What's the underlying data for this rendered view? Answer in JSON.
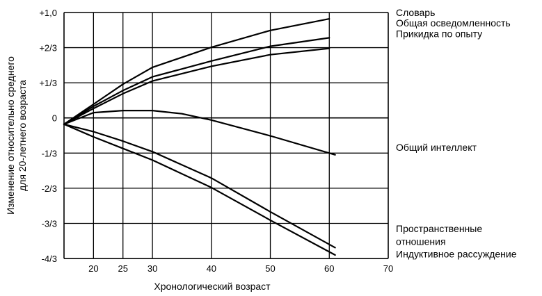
{
  "chart_data": {
    "type": "line",
    "title": "",
    "xlabel": "Хронологический возраст",
    "ylabel_lines": [
      "Изменение относительно среднего",
      "для 20-летнего возраста"
    ],
    "x_ticks": [
      "20",
      "25",
      "30",
      "40",
      "50",
      "60",
      "70"
    ],
    "y_ticks": [
      "+1,0",
      "+2/3",
      "+1/3",
      "0",
      "-1/3",
      "-2/3",
      "-3/3",
      "-4/3"
    ],
    "xlim": [
      15,
      70
    ],
    "ylim": [
      -1.333,
      1.0
    ],
    "series": [
      {
        "name": "Словарь",
        "x": [
          15,
          20,
          25,
          30,
          40,
          50,
          60
        ],
        "y": [
          -0.06,
          0.13,
          0.32,
          0.48,
          0.67,
          0.83,
          0.94
        ]
      },
      {
        "name": "Общая осведомленность",
        "x": [
          15,
          20,
          25,
          30,
          40,
          50,
          60
        ],
        "y": [
          -0.06,
          0.11,
          0.26,
          0.39,
          0.54,
          0.68,
          0.76
        ]
      },
      {
        "name": "Прикидка по опыту",
        "x": [
          15,
          20,
          25,
          30,
          40,
          50,
          60
        ],
        "y": [
          -0.06,
          0.09,
          0.23,
          0.35,
          0.49,
          0.6,
          0.66
        ]
      },
      {
        "name": "Общий интеллект",
        "x": [
          15,
          20,
          25,
          30,
          35,
          40,
          50,
          61
        ],
        "y": [
          -0.06,
          0.05,
          0.07,
          0.07,
          0.04,
          -0.02,
          -0.17,
          -0.35
        ]
      },
      {
        "name": "Пространственные отношения",
        "x": [
          15,
          20,
          25,
          30,
          40,
          50,
          61
        ],
        "y": [
          -0.06,
          -0.13,
          -0.22,
          -0.32,
          -0.57,
          -0.89,
          -1.23
        ]
      },
      {
        "name": "Индуктивное рассуждение",
        "x": [
          15,
          20,
          25,
          30,
          40,
          50,
          61
        ],
        "y": [
          -0.06,
          -0.18,
          -0.29,
          -0.4,
          -0.66,
          -0.97,
          -1.3
        ]
      }
    ],
    "legend_labels": [
      {
        "text": "Словарь",
        "y_value": 1.0
      },
      {
        "text": "Общая осведомленность",
        "y_value": 0.9
      },
      {
        "text": "Прикидка по опыту",
        "y_value": 0.8
      },
      {
        "text": "Общий интеллект",
        "y_value": -0.28
      },
      {
        "text": "Пространственные",
        "y_value": -1.05
      },
      {
        "text": "отношения",
        "y_value": -1.17
      },
      {
        "text": "Индуктивное рассуждение",
        "y_value": -1.29
      }
    ],
    "colors": {
      "line": "#000000",
      "background": "#ffffff"
    }
  }
}
